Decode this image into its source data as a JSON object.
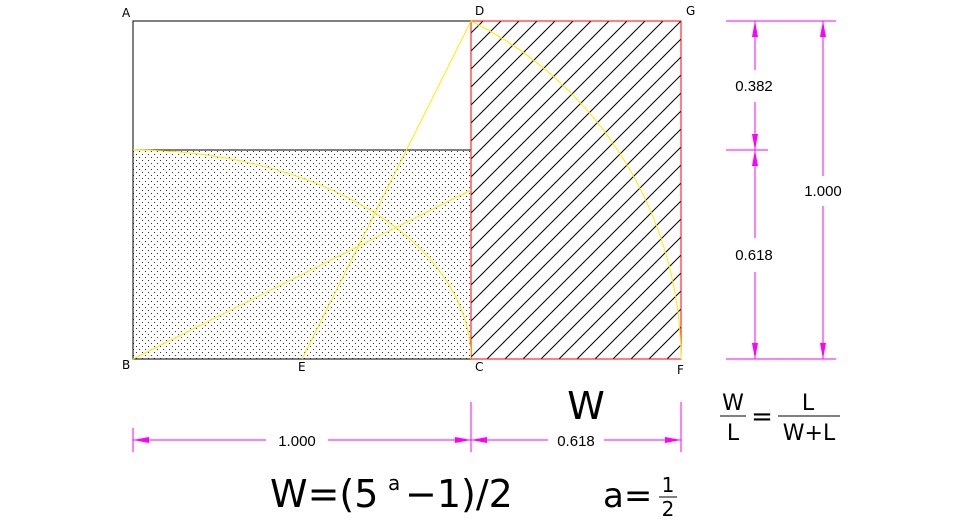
{
  "points": {
    "A": "A",
    "B": "B",
    "C": "C",
    "D": "D",
    "E": "E",
    "F": "F",
    "G": "G"
  },
  "dimensions": {
    "horizontal_left": "1.000",
    "horizontal_right": "0.618",
    "vertical_top": "0.382",
    "vertical_bottom": "0.618",
    "vertical_total": "1.000"
  },
  "labels": {
    "width_label": "W",
    "ratio_num_left": "W",
    "ratio_den_left": "L",
    "ratio_equals": "=",
    "ratio_num_right": "L",
    "ratio_den_right": "W+L"
  },
  "formula": {
    "main": "W=(5",
    "exponent": "a",
    "tail": "−1)/2",
    "a_eq": "a=",
    "frac_num": "1",
    "frac_den": "2"
  },
  "colors": {
    "construction": "#ffea00",
    "golden_rect_border": "#ff0000",
    "dimension": "#ff00ff",
    "outline": "#000000"
  }
}
